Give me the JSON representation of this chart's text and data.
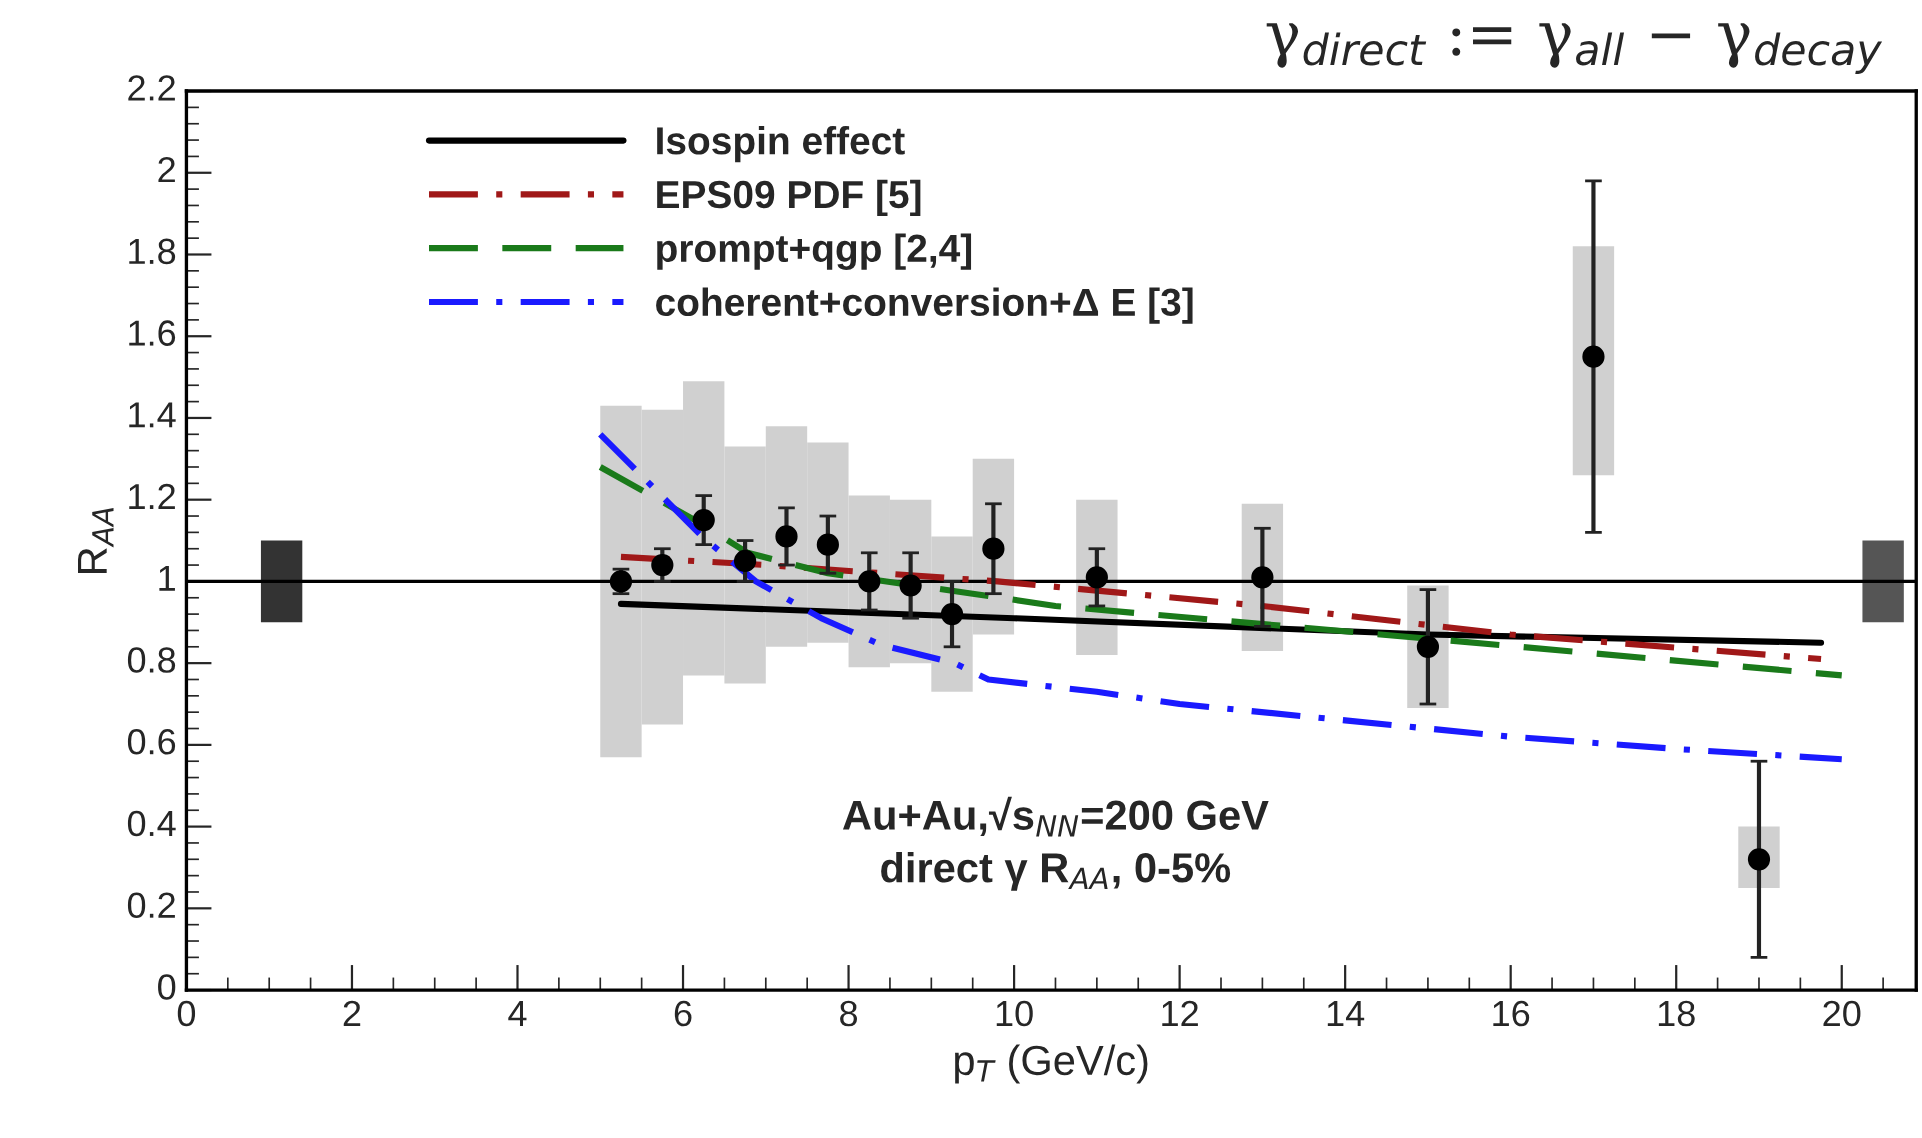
{
  "chart_data": {
    "type": "scatter",
    "title": "γ$_{direct}$ := γ$_{all}$ − γ$_{decay}$",
    "xlabel": "p$_{T}$ (GeV/c)",
    "ylabel": "R$_{AA}$",
    "xlim": [
      0,
      20.9
    ],
    "xticks": [
      0,
      2,
      4,
      6,
      8,
      10,
      12,
      14,
      16,
      18,
      20
    ],
    "ylim": [
      0,
      2.2
    ],
    "yticks": [
      0,
      0.2,
      0.4,
      0.6,
      0.8,
      1,
      1.2,
      1.4,
      1.6,
      1.8,
      2,
      2.2
    ],
    "grid": false,
    "legend": "top left",
    "ref_lines": [
      {
        "axis": "y",
        "value": 1,
        "color": "#000000"
      }
    ],
    "annotations": [
      "Au+Au,√s$_{NN}$=200 GeV",
      "direct γ R$_{AA}$, 0-5%"
    ],
    "series": [
      {
        "type": "bar",
        "color": "#333333",
        "x": [
          1.15
        ],
        "base": [
          0.9
        ],
        "values": [
          0.2
        ]
      },
      {
        "type": "bar",
        "color": "#555555",
        "x": [
          20.5
        ],
        "base": [
          0.9
        ],
        "values": [
          0.2
        ]
      },
      {
        "type": "bar",
        "color": "#d0d0d0",
        "x": [
          5.25,
          5.75,
          6.25,
          6.75,
          7.25,
          7.75,
          8.25,
          8.75,
          9.25,
          9.75,
          11,
          13,
          15,
          17,
          19
        ],
        "base": [
          0.57,
          0.65,
          0.77,
          0.75,
          0.84,
          0.85,
          0.79,
          0.8,
          0.73,
          0.87,
          0.82,
          0.83,
          0.69,
          1.26,
          0.25
        ],
        "values": [
          0.86,
          0.77,
          0.72,
          0.58,
          0.54,
          0.49,
          0.42,
          0.4,
          0.38,
          0.43,
          0.38,
          0.36,
          0.3,
          0.56,
          0.15
        ]
      },
      {
        "type": "line",
        "name": "Isospin effect",
        "color": "#000000",
        "line_style": "solid",
        "x": [
          5.25,
          10,
          15,
          19.75
        ],
        "values": [
          0.945,
          0.91,
          0.87,
          0.85
        ]
      },
      {
        "type": "line",
        "name": "EPS09 PDF [5]",
        "color": "#a01818",
        "line_style": "dashdot",
        "x": [
          5.25,
          7,
          9.8,
          13,
          16,
          19.75
        ],
        "values": [
          1.06,
          1.04,
          1.0,
          0.94,
          0.87,
          0.81
        ]
      },
      {
        "type": "line",
        "name": "prompt+qgp [2,4]",
        "color": "#1a7a1a",
        "line_style": "dashed",
        "x": [
          5.0,
          6.23,
          6.78,
          7.75,
          9.5,
          10.5,
          15,
          20
        ],
        "values": [
          1.28,
          1.14,
          1.07,
          1.02,
          0.97,
          0.94,
          0.86,
          0.77
        ]
      },
      {
        "type": "line",
        "name": "coherent+conversion+Δ E [3]",
        "color": "#1a1aff",
        "line_style": "dashdot",
        "x": [
          5.0,
          6.23,
          6.88,
          7.67,
          8.39,
          9.28,
          9.69,
          11.0,
          12,
          14,
          16,
          18,
          20
        ],
        "values": [
          1.36,
          1.11,
          1.0,
          0.91,
          0.845,
          0.8,
          0.76,
          0.73,
          0.7,
          0.66,
          0.62,
          0.59,
          0.565
        ]
      },
      {
        "color": "#000000",
        "marker": "circle",
        "x": [
          5.25,
          5.75,
          6.25,
          6.75,
          7.25,
          7.75,
          8.25,
          8.75,
          9.25,
          9.75,
          11,
          13,
          15,
          17,
          19
        ],
        "values": [
          1.0,
          1.04,
          1.15,
          1.05,
          1.11,
          1.09,
          1.0,
          0.99,
          0.92,
          1.08,
          1.01,
          1.01,
          0.84,
          1.55,
          0.32
        ],
        "errors": [
          0.03,
          0.04,
          0.06,
          0.05,
          0.07,
          0.07,
          0.07,
          0.08,
          0.08,
          0.11,
          0.07,
          0.12,
          0.14,
          0.43,
          0.24
        ]
      }
    ]
  }
}
